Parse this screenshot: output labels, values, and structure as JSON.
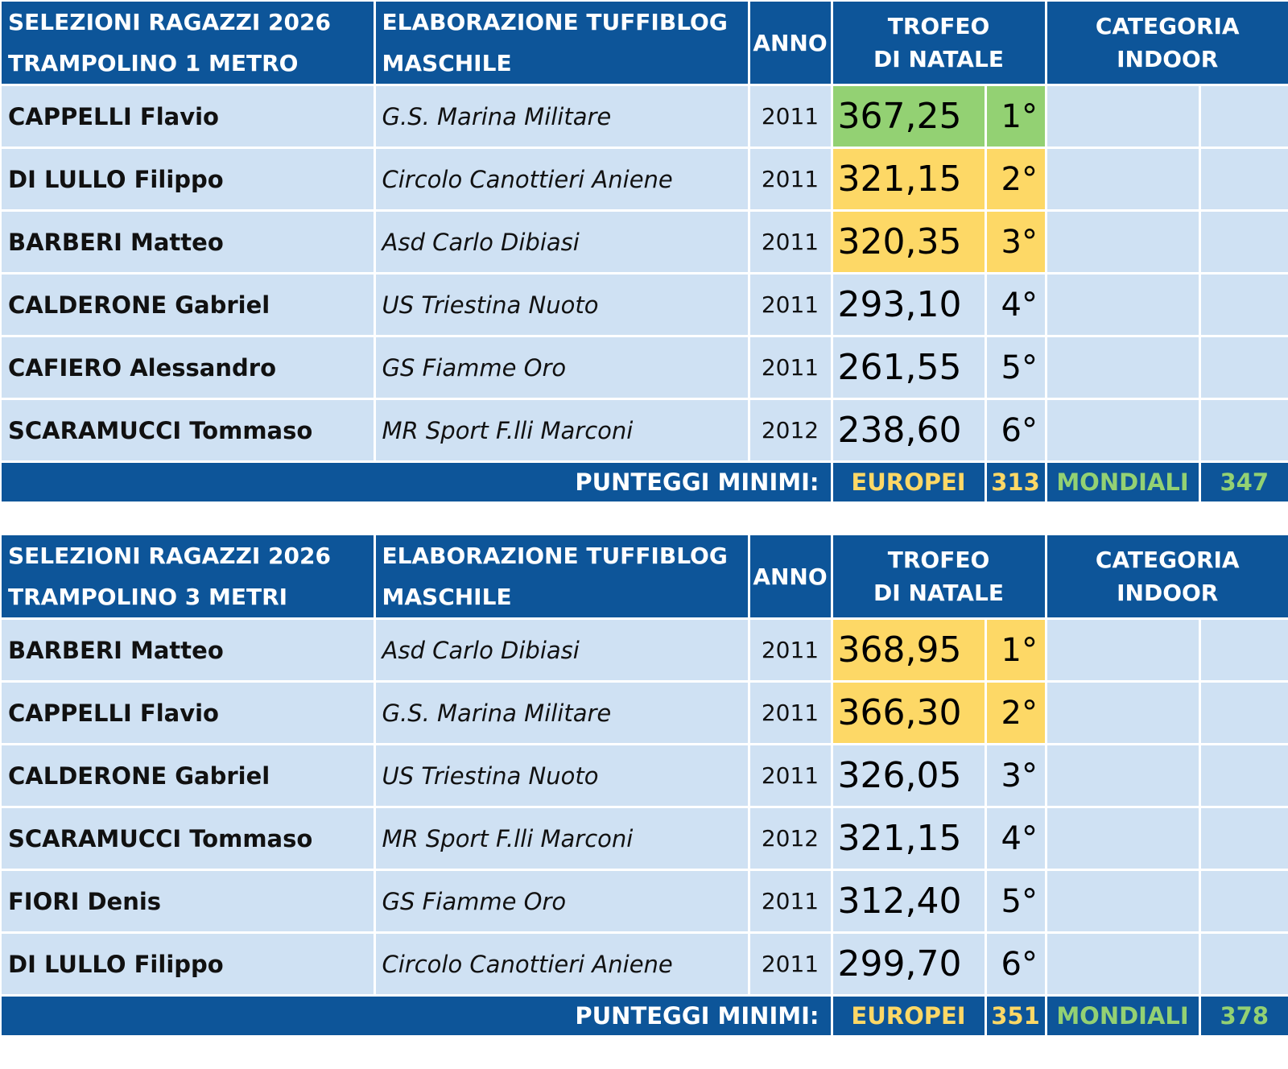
{
  "colors": {
    "header_blue": "#0d5599",
    "row_light": "#cfe1f3",
    "gold": "#fdd866",
    "green": "#93d173"
  },
  "tables": [
    {
      "title_line1": "SELEZIONI RAGAZZI 2026",
      "title_line2": "TRAMPOLINO 1 METRO",
      "credit_line1": "ELABORAZIONE TUFFIBLOG",
      "credit_line2": "MASCHILE",
      "col_year": "ANNO",
      "col_trophy_line1": "TROFEO",
      "col_trophy_line2": "DI NATALE",
      "col_indoor_line1": "CATEGORIA",
      "col_indoor_line2": "INDOOR",
      "rows": [
        {
          "name": "CAPPELLI Flavio",
          "club": "G.S. Marina Militare",
          "year": "2011",
          "score": "367,25",
          "pos": "1°",
          "highlight": "green"
        },
        {
          "name": "DI LULLO Filippo",
          "club": "Circolo Canottieri Aniene",
          "year": "2011",
          "score": "321,15",
          "pos": "2°",
          "highlight": "gold"
        },
        {
          "name": "BARBERI Matteo",
          "club": "Asd Carlo Dibiasi",
          "year": "2011",
          "score": "320,35",
          "pos": "3°",
          "highlight": "gold"
        },
        {
          "name": "CALDERONE Gabriel",
          "club": "US Triestina Nuoto",
          "year": "2011",
          "score": "293,10",
          "pos": "4°",
          "highlight": ""
        },
        {
          "name": "CAFIERO Alessandro",
          "club": "GS Fiamme Oro",
          "year": "2011",
          "score": "261,55",
          "pos": "5°",
          "highlight": ""
        },
        {
          "name": "SCARAMUCCI Tommaso",
          "club": "MR Sport F.lli Marconi",
          "year": "2012",
          "score": "238,60",
          "pos": "6°",
          "highlight": ""
        }
      ],
      "footer": {
        "label": "PUNTEGGI MINIMI:",
        "eu_label": "EUROPEI",
        "eu_value": "313",
        "world_label": "MONDIALI",
        "world_value": "347"
      }
    },
    {
      "title_line1": "SELEZIONI RAGAZZI 2026",
      "title_line2": "TRAMPOLINO 3 METRI",
      "credit_line1": "ELABORAZIONE TUFFIBLOG",
      "credit_line2": "MASCHILE",
      "col_year": "ANNO",
      "col_trophy_line1": "TROFEO",
      "col_trophy_line2": "DI NATALE",
      "col_indoor_line1": "CATEGORIA",
      "col_indoor_line2": "INDOOR",
      "rows": [
        {
          "name": "BARBERI Matteo",
          "club": "Asd Carlo Dibiasi",
          "year": "2011",
          "score": "368,95",
          "pos": "1°",
          "highlight": "gold"
        },
        {
          "name": "CAPPELLI Flavio",
          "club": "G.S. Marina Militare",
          "year": "2011",
          "score": "366,30",
          "pos": "2°",
          "highlight": "gold"
        },
        {
          "name": "CALDERONE Gabriel",
          "club": "US Triestina Nuoto",
          "year": "2011",
          "score": "326,05",
          "pos": "3°",
          "highlight": ""
        },
        {
          "name": "SCARAMUCCI Tommaso",
          "club": "MR Sport F.lli Marconi",
          "year": "2012",
          "score": "321,15",
          "pos": "4°",
          "highlight": ""
        },
        {
          "name": "FIORI Denis",
          "club": "GS Fiamme Oro",
          "year": "2011",
          "score": "312,40",
          "pos": "5°",
          "highlight": ""
        },
        {
          "name": "DI LULLO Filippo",
          "club": "Circolo Canottieri Aniene",
          "year": "2011",
          "score": "299,70",
          "pos": "6°",
          "highlight": ""
        }
      ],
      "footer": {
        "label": "PUNTEGGI MINIMI:",
        "eu_label": "EUROPEI",
        "eu_value": "351",
        "world_label": "MONDIALI",
        "world_value": "378"
      }
    }
  ]
}
